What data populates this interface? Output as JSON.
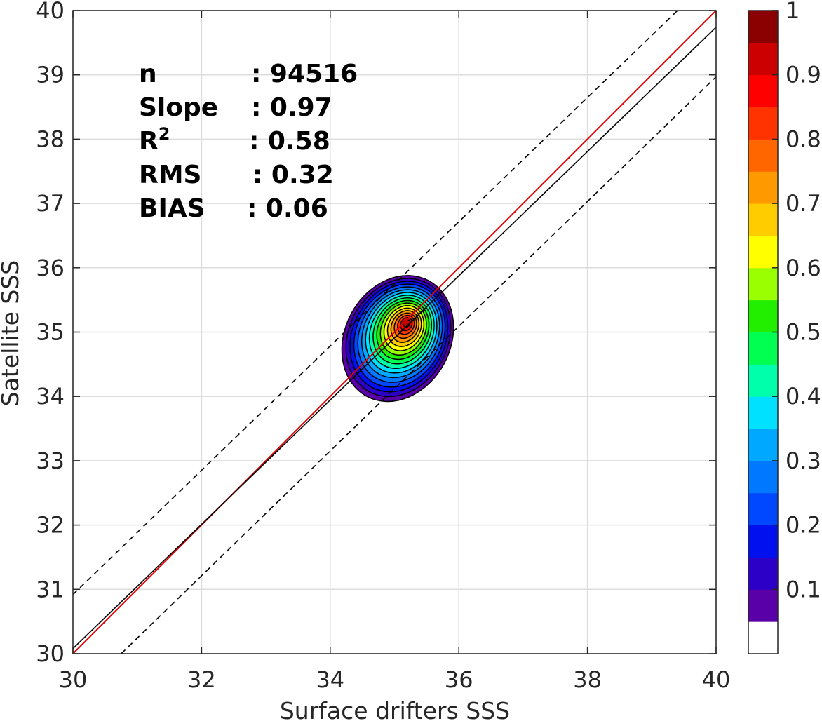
{
  "chart_data": {
    "type": "contour",
    "xlabel": "Surface drifters SSS",
    "ylabel": "Satellite SSS",
    "xlim": [
      30,
      40
    ],
    "ylim": [
      30,
      40
    ],
    "x_ticks": [
      "30",
      "32",
      "34",
      "36",
      "38",
      "40"
    ],
    "y_ticks": [
      "30",
      "31",
      "32",
      "33",
      "34",
      "35",
      "36",
      "37",
      "38",
      "39",
      "40"
    ],
    "grid": true,
    "stats": [
      {
        "label": "n",
        "value": ": 94516"
      },
      {
        "label": "Slope",
        "value": ": 0.97"
      },
      {
        "label": "R",
        "sup": "2",
        "value": ": 0.58"
      },
      {
        "label": "RMS",
        "value": ": 0.32"
      },
      {
        "label": "BIAS",
        "value": ": 0.06"
      }
    ],
    "lines": [
      {
        "kind": "identity",
        "color": "#e00000",
        "style": "solid",
        "slope": 1,
        "intercept": 0
      },
      {
        "kind": "fit",
        "color": "#000000",
        "style": "solid",
        "points": [
          [
            30,
            30.08
          ],
          [
            40,
            39.74
          ]
        ]
      },
      {
        "kind": "upper-bound",
        "color": "#000000",
        "style": "dashed",
        "points": [
          [
            30,
            30.92
          ],
          [
            39.4,
            40
          ]
        ]
      },
      {
        "kind": "lower-bound",
        "color": "#000000",
        "style": "dashed",
        "points": [
          [
            30.75,
            30
          ],
          [
            40,
            38.97
          ]
        ]
      }
    ],
    "density_peak": {
      "x": 35.2,
      "y": 35.15
    },
    "colorbar": {
      "min": 0,
      "max": 1,
      "ticks": [
        "0.1",
        "0.2",
        "0.3",
        "0.4",
        "0.5",
        "0.6",
        "0.7",
        "0.8",
        "0.9",
        "1"
      ],
      "colors": [
        "#ffffff",
        "#5a00a8",
        "#2d00c8",
        "#0010ee",
        "#0048ff",
        "#0078ff",
        "#00a8ff",
        "#00e0ff",
        "#00ffaa",
        "#00ff50",
        "#22ee00",
        "#9aff00",
        "#ffff00",
        "#ffcc00",
        "#ff9900",
        "#ff6600",
        "#ff3300",
        "#ff0000",
        "#cc0000",
        "#8b0000"
      ]
    }
  }
}
